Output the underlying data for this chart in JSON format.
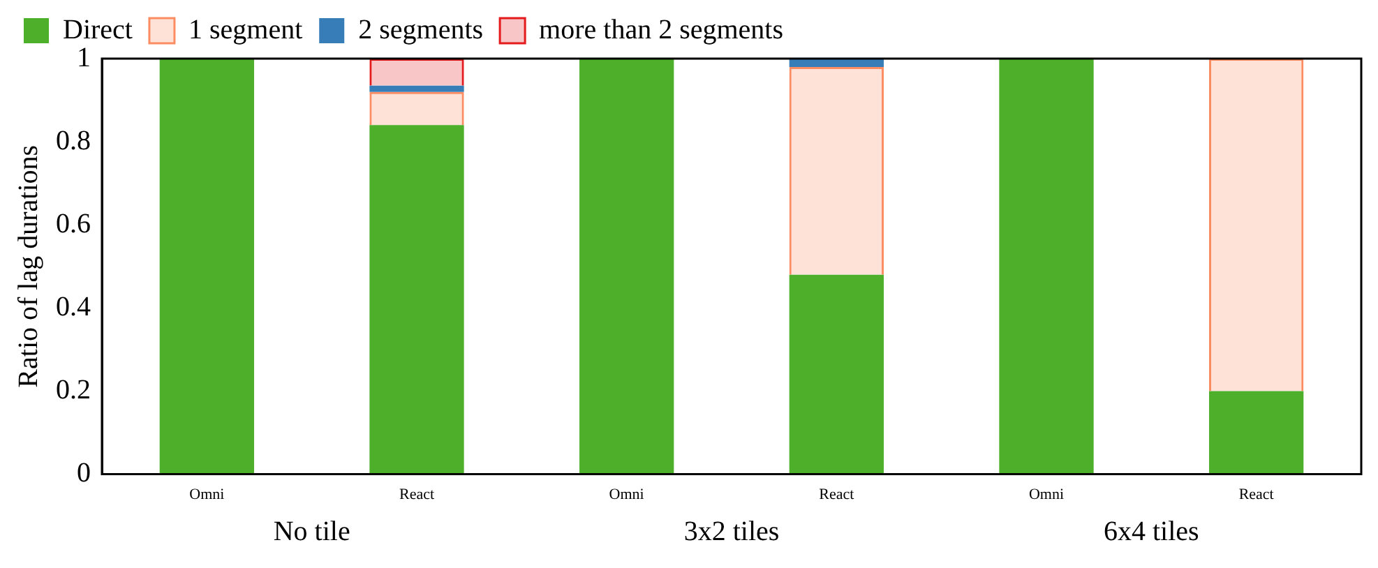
{
  "chart_data": {
    "type": "bar",
    "stacked": true,
    "ylabel": "Ratio of lag durations",
    "categories": [
      "Omni",
      "React",
      "Omni",
      "React",
      "Omni",
      "React"
    ],
    "series": [
      {
        "name": "Direct",
        "color": "#4daf2a",
        "values": [
          1,
          0.84,
          1,
          0.48,
          1,
          0.2
        ]
      },
      {
        "name": "1 segment",
        "color": "#fc8d62",
        "values": [
          0,
          0.08,
          0,
          0.5,
          0,
          0.8
        ]
      },
      {
        "name": "2 segments",
        "color": "#377eb8",
        "values": [
          0,
          0.015,
          0,
          0.02,
          0,
          0
        ]
      },
      {
        "name": "more than 2 segments",
        "color": "#e41a1c",
        "values": [
          0,
          0.065,
          0,
          0,
          0,
          0
        ]
      }
    ],
    "ylim": [
      0,
      1
    ],
    "yticks": [
      0,
      0.2,
      0.4,
      0.6,
      0.8,
      1
    ],
    "grid": false,
    "legend": "top left",
    "annotations": [
      "No tile",
      "3x2 tiles",
      "6x4 tiles"
    ]
  }
}
